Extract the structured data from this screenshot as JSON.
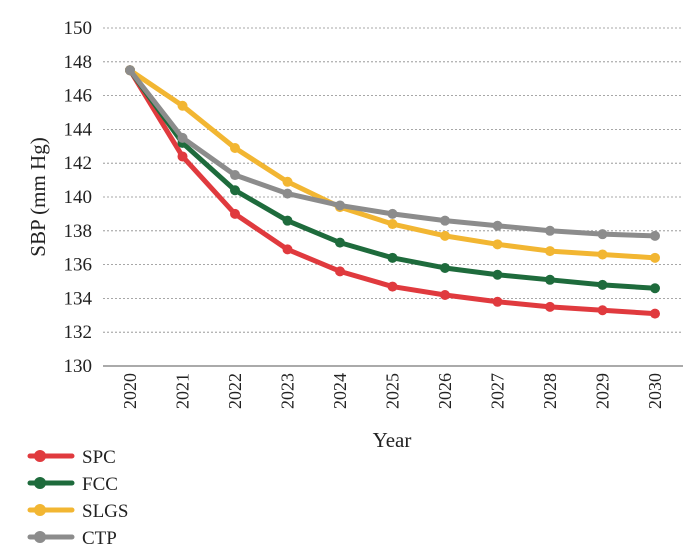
{
  "chart_data": {
    "type": "line",
    "title": "",
    "xlabel": "Year",
    "ylabel": "SBP (mm Hg)",
    "categories": [
      "2020",
      "2021",
      "2022",
      "2023",
      "2024",
      "2025",
      "2026",
      "2027",
      "2028",
      "2029",
      "2030"
    ],
    "ylim": [
      130,
      150
    ],
    "yticks": [
      130,
      132,
      134,
      136,
      138,
      140,
      142,
      144,
      146,
      148,
      150
    ],
    "grid": true,
    "legend_position": "bottom-left",
    "series": [
      {
        "name": "SPC",
        "color": "#e03a3e",
        "values": [
          147.5,
          142.4,
          139.0,
          136.9,
          135.6,
          134.7,
          134.2,
          133.8,
          133.5,
          133.3,
          133.1
        ]
      },
      {
        "name": "FCC",
        "color": "#1e6b3c",
        "values": [
          147.5,
          143.2,
          140.4,
          138.6,
          137.3,
          136.4,
          135.8,
          135.4,
          135.1,
          134.8,
          134.6
        ]
      },
      {
        "name": "SLGS",
        "color": "#f2b632",
        "values": [
          147.5,
          145.4,
          142.9,
          140.9,
          139.4,
          138.4,
          137.7,
          137.2,
          136.8,
          136.6,
          136.4
        ]
      },
      {
        "name": "CTP",
        "color": "#8c8c8c",
        "values": [
          147.5,
          143.5,
          141.3,
          140.2,
          139.5,
          139.0,
          138.6,
          138.3,
          138.0,
          137.8,
          137.7
        ]
      }
    ]
  }
}
